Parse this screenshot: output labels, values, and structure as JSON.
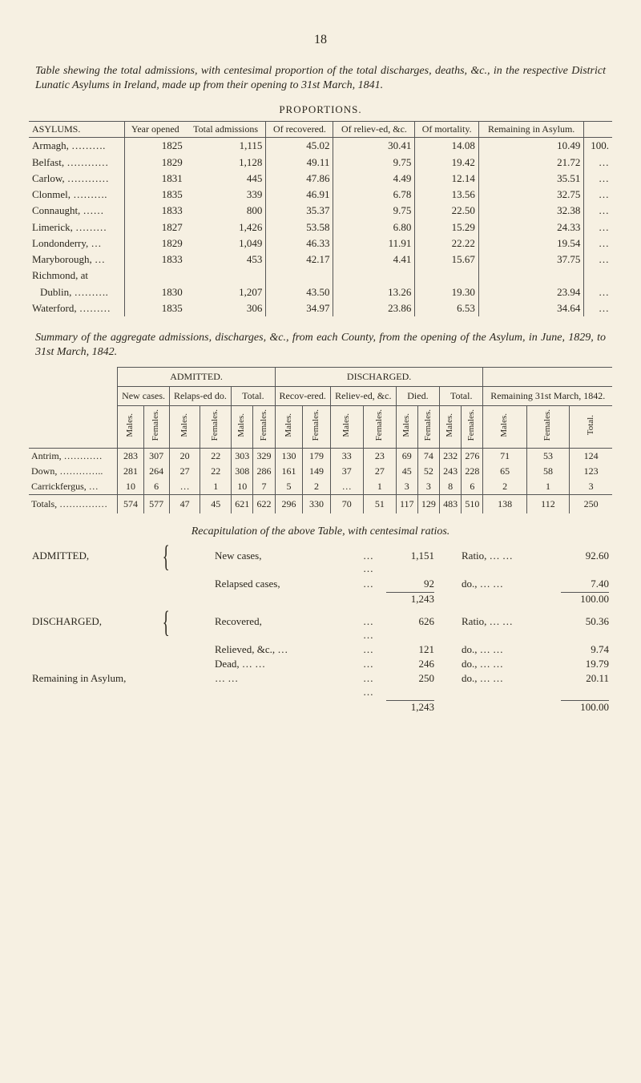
{
  "page_number": "18",
  "title_html": "Table shewing the total admissions, with centesimal proportion of the total discharges, deaths, &c., in the respective District Lunatic Asylums in Ireland, made up from their opening to 31st March, 1841.",
  "proportions_label": "PROPORTIONS.",
  "table1": {
    "headers": [
      "ASYLUMS.",
      "Year opened",
      "Total admissions",
      "Of recovered.",
      "Of reliev-ed, &c.",
      "Of mortality.",
      "Remaining in Asylum.",
      ""
    ],
    "rows": [
      [
        "Armagh, ……….",
        "1825",
        "1,115",
        "45.02",
        "30.41",
        "14.08",
        "10.49",
        "100."
      ],
      [
        "Belfast, …………",
        "1829",
        "1,128",
        "49.11",
        "9.75",
        "19.42",
        "21.72",
        "…"
      ],
      [
        "Carlow, …………",
        "1831",
        "445",
        "47.86",
        "4.49",
        "12.14",
        "35.51",
        "…"
      ],
      [
        "Clonmel, ……….",
        "1835",
        "339",
        "46.91",
        "6.78",
        "13.56",
        "32.75",
        "…"
      ],
      [
        "Connaught, ……",
        "1833",
        "800",
        "35.37",
        "9.75",
        "22.50",
        "32.38",
        "…"
      ],
      [
        "Limerick, ………",
        "1827",
        "1,426",
        "53.58",
        "6.80",
        "15.29",
        "24.33",
        "…"
      ],
      [
        "Londonderry, …",
        "1829",
        "1,049",
        "46.33",
        "11.91",
        "22.22",
        "19.54",
        "…"
      ],
      [
        "Maryborough, …",
        "1833",
        "453",
        "42.17",
        "4.41",
        "15.67",
        "37.75",
        "…"
      ],
      [
        "Richmond, at",
        "",
        "",
        "",
        "",
        "",
        "",
        ""
      ],
      [
        "Dublin, ……….",
        "1830",
        "1,207",
        "43.50",
        "13.26",
        "19.30",
        "23.94",
        "…"
      ],
      [
        "Waterford, ………",
        "1835",
        "306",
        "34.97",
        "23.86",
        "6.53",
        "34.64",
        "…"
      ]
    ],
    "indent_row_indices": [
      9
    ]
  },
  "subtitle_html": "Summary of the aggregate admissions, discharges, &c., from each County, from the opening of the Asylum, in June, 1829, to 31st March, 1842.",
  "heading_left": "ADMITTED.",
  "heading_right": "DISCHARGED.",
  "table2": {
    "groups": [
      "New cases.",
      "Relaps-ed do.",
      "Total.",
      "Recov-ered.",
      "Reliev-ed, &c.",
      "Died.",
      "Total.",
      "Remaining 31st March, 1842."
    ],
    "subheads": [
      "Males.",
      "Females.",
      "Males.",
      "Females.",
      "Males.",
      "Females.",
      "Males.",
      "Females.",
      "Males.",
      "Females.",
      "Males.",
      "Females.",
      "Males.",
      "Females.",
      "Males.",
      "Females.",
      "Total."
    ],
    "rows": [
      [
        "Antrim, …………",
        "283",
        "307",
        "20",
        "22",
        "303",
        "329",
        "130",
        "179",
        "33",
        "23",
        "69",
        "74",
        "232",
        "276",
        "71",
        "53",
        "124"
      ],
      [
        "Down, …………..",
        "281",
        "264",
        "27",
        "22",
        "308",
        "286",
        "161",
        "149",
        "37",
        "27",
        "45",
        "52",
        "243",
        "228",
        "65",
        "58",
        "123"
      ],
      [
        "Carrickfergus, …",
        "10",
        "6",
        "…",
        "1",
        "10",
        "7",
        "5",
        "2",
        "…",
        "1",
        "3",
        "3",
        "8",
        "6",
        "2",
        "1",
        "3"
      ]
    ],
    "totals": [
      "Totals, ……………",
      "574",
      "577",
      "47",
      "45",
      "621",
      "622",
      "296",
      "330",
      "70",
      "51",
      "117",
      "129",
      "483",
      "510",
      "138",
      "112",
      "250"
    ]
  },
  "recap_title": "Recapitulation of the above Table, with centesimal ratios.",
  "recap": {
    "rows": [
      {
        "label": "ADMITTED,",
        "items": [
          {
            "mid": "New cases,",
            "dots": "…   …",
            "n": "1,151",
            "ratio": "Ratio, …   …",
            "pct": "92.60"
          },
          {
            "mid": "Relapsed cases,",
            "dots": "…",
            "n": "92",
            "ratio": "do.,   …   …",
            "pct": "7.40"
          }
        ]
      },
      {
        "sum_n": "1,243",
        "sum_pct": "100.00"
      },
      {
        "label": "DISCHARGED,",
        "items": [
          {
            "mid": "Recovered,",
            "dots": "…   …",
            "n": "626",
            "ratio": "Ratio,   …   …",
            "pct": "50.36"
          },
          {
            "mid": "Relieved, &c., …",
            "dots": "…",
            "n": "121",
            "ratio": "do.,   …   …",
            "pct": "9.74"
          },
          {
            "mid": "Dead,   …   …",
            "dots": "…",
            "n": "246",
            "ratio": "do.,   …   …",
            "pct": "19.79"
          }
        ]
      },
      {
        "label": "Remaining in Asylum,",
        "items": [
          {
            "mid": "…   …",
            "dots": "…   …",
            "n": "250",
            "ratio": "do.,   …   …",
            "pct": "20.11"
          }
        ]
      },
      {
        "sum_n": "1,243",
        "sum_pct": "100.00"
      }
    ]
  }
}
